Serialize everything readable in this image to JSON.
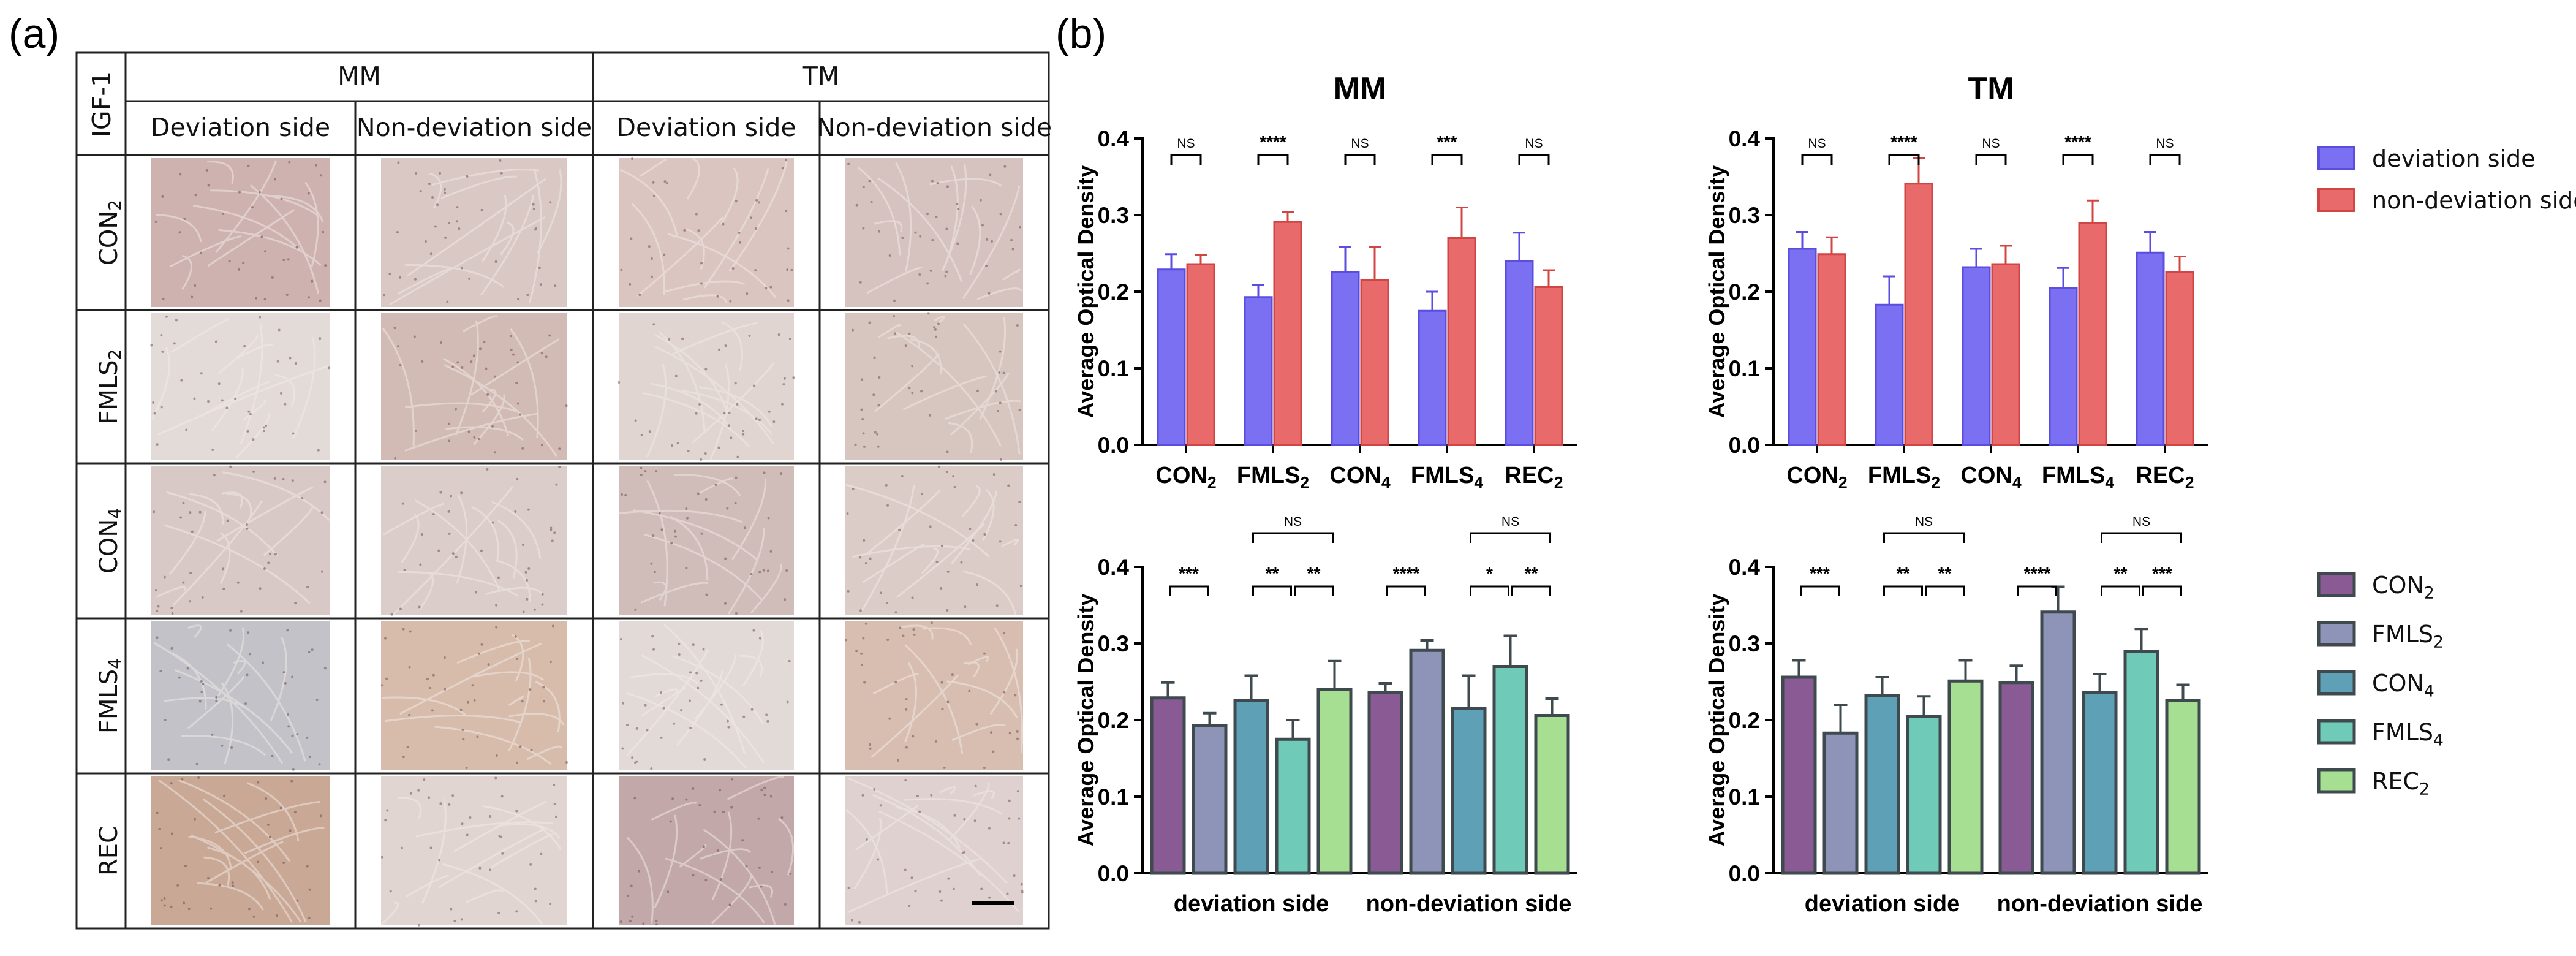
{
  "panel_a": {
    "label": "(a)",
    "stain": "IGF-1",
    "columns": [
      {
        "group": "MM",
        "sides": [
          "Deviation side",
          "Non-deviation side"
        ]
      },
      {
        "group": "TM",
        "sides": [
          "Deviation side",
          "Non-deviation side"
        ]
      }
    ],
    "rows": [
      {
        "name": "CON",
        "sub": "2"
      },
      {
        "name": "FMLS",
        "sub": "2"
      },
      {
        "name": "CON",
        "sub": "4"
      },
      {
        "name": "FMLS",
        "sub": "4"
      },
      {
        "name": "REC",
        "sub": ""
      }
    ],
    "tile_colors": [
      [
        "#cdb2b0",
        "#d9c8c4",
        "#dac5c0",
        "#d6c3bf"
      ],
      [
        "#e3dbd7",
        "#d2bbb5",
        "#e0d5d1",
        "#d7c5bf"
      ],
      [
        "#d9c9c6",
        "#dbcdc9",
        "#d0bcb8",
        "#dcccc7"
      ],
      [
        "#c2c2c8",
        "#d7bcac",
        "#e2dad7",
        "#d7beb0"
      ],
      [
        "#c9a996",
        "#e1d5d2",
        "#c2a8a8",
        "#ded1cf"
      ]
    ]
  },
  "panel_b": {
    "label": "(b)",
    "ylabel": "Average Optical Density",
    "colors": {
      "deviation side": "#7b6ff2",
      "deviation_edge": "#5a4de0",
      "non-deviation side": "#e86a6a",
      "non_deviation_edge": "#d24545",
      "CON2": "#8a5a95",
      "FMLS2": "#8e93b8",
      "CON4": "#5ea0b5",
      "FMLS4": "#6fcab8",
      "REC2": "#a6df92"
    },
    "legend_top": [
      {
        "label": "deviation side",
        "color": "#7b6ff2",
        "edge": "#5a4de0"
      },
      {
        "label": "non-deviation side",
        "color": "#e86a6a",
        "edge": "#d24545"
      }
    ],
    "legend_bottom": [
      {
        "name": "CON",
        "sub": "2",
        "color": "#8a5a95"
      },
      {
        "name": "FMLS",
        "sub": "2",
        "color": "#8e93b8"
      },
      {
        "name": "CON",
        "sub": "4",
        "color": "#5ea0b5"
      },
      {
        "name": "FMLS",
        "sub": "4",
        "color": "#6fcab8"
      },
      {
        "name": "REC",
        "sub": "2",
        "color": "#a6df92"
      }
    ]
  },
  "chart_data": [
    {
      "type": "bar",
      "id": "mm-top",
      "title": "MM",
      "ylabel": "Average Optical Density",
      "ylim": [
        0,
        0.4
      ],
      "yticks": [
        "0.0",
        "0.1",
        "0.2",
        "0.3",
        "0.4"
      ],
      "categories": [
        {
          "name": "CON",
          "sub": "2"
        },
        {
          "name": "FMLS",
          "sub": "2"
        },
        {
          "name": "CON",
          "sub": "4"
        },
        {
          "name": "FMLS",
          "sub": "4"
        },
        {
          "name": "REC",
          "sub": "2"
        }
      ],
      "series": [
        {
          "name": "deviation side",
          "values": [
            0.229,
            0.193,
            0.226,
            0.175,
            0.24
          ],
          "errors": [
            0.02,
            0.016,
            0.032,
            0.025,
            0.037
          ]
        },
        {
          "name": "non-deviation side",
          "values": [
            0.236,
            0.291,
            0.215,
            0.27,
            0.206
          ],
          "errors": [
            0.012,
            0.013,
            0.043,
            0.04,
            0.022
          ]
        }
      ],
      "significance": [
        "NS",
        "****",
        "NS",
        "***",
        "NS"
      ]
    },
    {
      "type": "bar",
      "id": "tm-top",
      "title": "TM",
      "ylabel": "Average Optical Density",
      "ylim": [
        0,
        0.4
      ],
      "yticks": [
        "0.0",
        "0.1",
        "0.2",
        "0.3",
        "0.4"
      ],
      "categories": [
        {
          "name": "CON",
          "sub": "2"
        },
        {
          "name": "FMLS",
          "sub": "2"
        },
        {
          "name": "CON",
          "sub": "4"
        },
        {
          "name": "FMLS",
          "sub": "4"
        },
        {
          "name": "REC",
          "sub": "2"
        }
      ],
      "series": [
        {
          "name": "deviation side",
          "values": [
            0.256,
            0.183,
            0.232,
            0.205,
            0.251
          ],
          "errors": [
            0.022,
            0.037,
            0.024,
            0.026,
            0.027
          ]
        },
        {
          "name": "non-deviation side",
          "values": [
            0.249,
            0.341,
            0.236,
            0.29,
            0.226
          ],
          "errors": [
            0.022,
            0.033,
            0.024,
            0.029,
            0.02
          ]
        }
      ],
      "significance": [
        "NS",
        "****",
        "NS",
        "****",
        "NS"
      ]
    },
    {
      "type": "bar",
      "id": "mm-bottom",
      "title": "",
      "ylabel": "Average Optical Density",
      "ylim": [
        0,
        0.4
      ],
      "yticks": [
        "0.0",
        "0.1",
        "0.2",
        "0.3",
        "0.4"
      ],
      "groups": [
        "deviation side",
        "non-deviation side"
      ],
      "series_names": [
        "CON2",
        "FMLS2",
        "CON4",
        "FMLS4",
        "REC2"
      ],
      "values": [
        [
          0.229,
          0.193,
          0.226,
          0.175,
          0.24
        ],
        [
          0.236,
          0.291,
          0.215,
          0.27,
          0.206
        ]
      ],
      "errors": [
        [
          0.02,
          0.016,
          0.032,
          0.025,
          0.037
        ],
        [
          0.012,
          0.013,
          0.043,
          0.04,
          0.022
        ]
      ],
      "brackets": [
        [
          {
            "from": 0,
            "to": 1,
            "label": "***"
          },
          {
            "from": 2,
            "to": 3,
            "label": "**"
          },
          {
            "from": 3,
            "to": 4,
            "label": "**"
          },
          {
            "from": 2,
            "to": 4,
            "label": "NS"
          }
        ],
        [
          {
            "from": 0,
            "to": 1,
            "label": "****"
          },
          {
            "from": 2,
            "to": 3,
            "label": "*"
          },
          {
            "from": 3,
            "to": 4,
            "label": "**"
          },
          {
            "from": 2,
            "to": 4,
            "label": "NS"
          }
        ]
      ]
    },
    {
      "type": "bar",
      "id": "tm-bottom",
      "title": "",
      "ylabel": "Average Optical Density",
      "ylim": [
        0,
        0.4
      ],
      "yticks": [
        "0.0",
        "0.1",
        "0.2",
        "0.3",
        "0.4"
      ],
      "groups": [
        "deviation side",
        "non-deviation side"
      ],
      "series_names": [
        "CON2",
        "FMLS2",
        "CON4",
        "FMLS4",
        "REC2"
      ],
      "values": [
        [
          0.256,
          0.183,
          0.232,
          0.205,
          0.251
        ],
        [
          0.249,
          0.341,
          0.236,
          0.29,
          0.226
        ]
      ],
      "errors": [
        [
          0.022,
          0.037,
          0.024,
          0.026,
          0.027
        ],
        [
          0.022,
          0.033,
          0.024,
          0.029,
          0.02
        ]
      ],
      "brackets": [
        [
          {
            "from": 0,
            "to": 1,
            "label": "***"
          },
          {
            "from": 2,
            "to": 3,
            "label": "**"
          },
          {
            "from": 3,
            "to": 4,
            "label": "**"
          },
          {
            "from": 2,
            "to": 4,
            "label": "NS"
          }
        ],
        [
          {
            "from": 0,
            "to": 1,
            "label": "****"
          },
          {
            "from": 2,
            "to": 3,
            "label": "**"
          },
          {
            "from": 3,
            "to": 4,
            "label": "***"
          },
          {
            "from": 2,
            "to": 4,
            "label": "NS"
          }
        ]
      ]
    }
  ]
}
